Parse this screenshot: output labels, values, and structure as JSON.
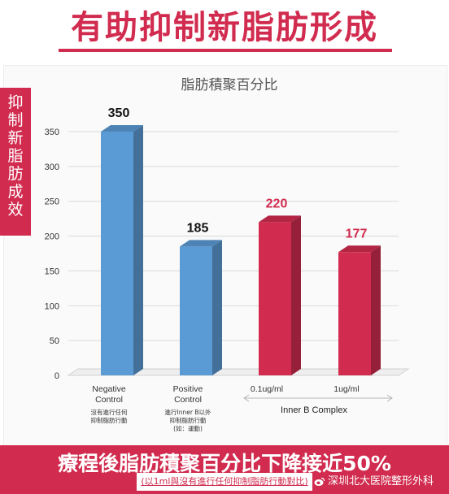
{
  "headline": "有助抑制新脂肪形成",
  "side_label": "抑制新脂肪成效",
  "chart_data": {
    "type": "bar",
    "title": "脂肪積聚百分比",
    "categories": [
      "Negative Control",
      "Positive Control",
      "0.1ug/ml",
      "1ug/ml"
    ],
    "category_notes": [
      "沒有進行任何\n抑制脂肪行動",
      "進行Inner B以外\n抑制脂肪行動\n(如：運動)",
      "",
      ""
    ],
    "values": [
      350,
      185,
      220,
      177
    ],
    "value_labels": [
      "350",
      "185",
      "220",
      "177"
    ],
    "bar_colors": [
      "#5b9bd5",
      "#5b9bd5",
      "#d12c4f",
      "#d12c4f"
    ],
    "label_colors": [
      "#111111",
      "#111111",
      "#d12c4f",
      "#d12c4f"
    ],
    "ylim": [
      0,
      350
    ],
    "yticks": [
      0,
      50,
      100,
      150,
      200,
      250,
      300,
      350
    ],
    "grid": true,
    "group_label": "Inner B Complex",
    "xlabel": "",
    "ylabel": ""
  },
  "footer": {
    "title": "療程後脂肪積聚百分比下降接近50%",
    "note": "(以1ml與沒有進行任何抑制脂肪行動對比)",
    "watermark": "深圳北大医院整形外科",
    "watermark_icon": "weibo-icon"
  },
  "colors": {
    "accent": "#d12c4f",
    "blue": "#5b9bd5"
  }
}
